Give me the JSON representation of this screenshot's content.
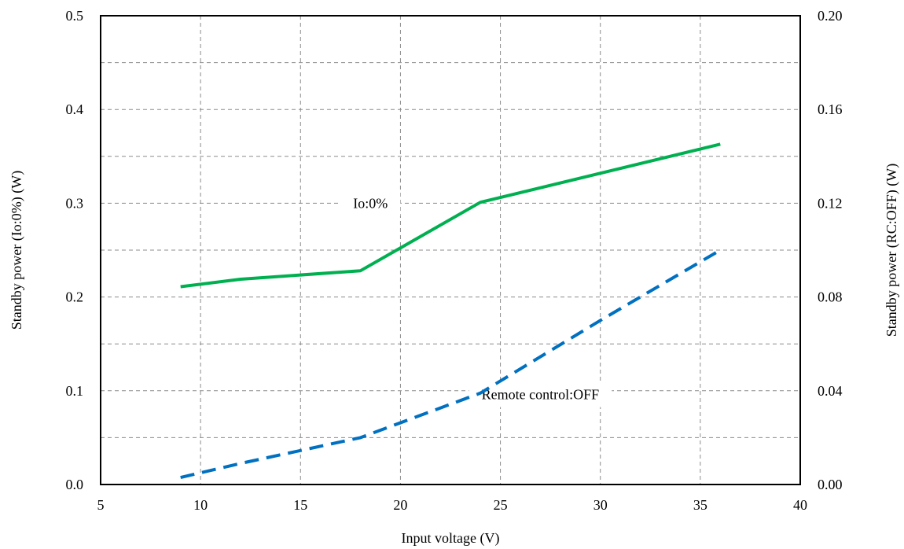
{
  "chart_data": {
    "type": "line",
    "title": "",
    "xlabel": "Input voltage (V)",
    "ylabel_left": "Standby power (Io:0%) (W)",
    "ylabel_right": "Standby power (RC:OFF) (W)",
    "xlim": [
      5,
      40
    ],
    "xticks": [
      "5",
      "10",
      "15",
      "20",
      "25",
      "30",
      "35",
      "40"
    ],
    "ylim_left": [
      0,
      0.5
    ],
    "yticks_left": [
      "0.0",
      "0.1",
      "0.2",
      "0.3",
      "0.4",
      "0.5"
    ],
    "ylim_right": [
      0,
      0.2
    ],
    "yticks_right": [
      "0.00",
      "0.04",
      "0.08",
      "0.12",
      "0.16",
      "0.20"
    ],
    "grid": true,
    "series": [
      {
        "axis": "left",
        "color": "#00b050",
        "style": "solid",
        "x": [
          9,
          12,
          18,
          24,
          36
        ],
        "y": [
          0.211,
          0.219,
          0.228,
          0.301,
          0.363
        ]
      },
      {
        "axis": "right",
        "color": "#0070c0",
        "style": "dashed",
        "x": [
          9,
          12,
          18,
          24,
          30,
          36
        ],
        "y": [
          0.003,
          0.009,
          0.02,
          0.039,
          0.07,
          0.1
        ]
      }
    ],
    "annotations": [
      {
        "text": "Io:0%",
        "x": 18.5,
        "y_left": 0.3
      },
      {
        "text": "Remote control:OFF",
        "x": 27,
        "y_left": 0.096
      }
    ]
  }
}
